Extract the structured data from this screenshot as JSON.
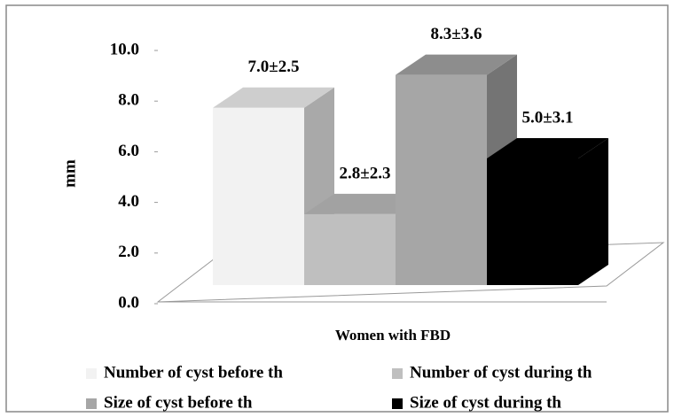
{
  "chart_data": {
    "type": "bar3d",
    "x_label": "Women with FBD",
    "y_label": "mm",
    "categories": [
      "Women with FBD"
    ],
    "series": [
      {
        "name": "Number of cyst before th",
        "color": "#f2f2f2",
        "values": [
          7.0
        ],
        "value_labels": [
          "7.0±2.5"
        ]
      },
      {
        "name": "Number of cyst during th",
        "color": "#bfbfbf",
        "values": [
          2.8
        ],
        "value_labels": [
          "2.8±2.3"
        ]
      },
      {
        "name": "Size of cyst before th",
        "color": "#a6a6a6",
        "values": [
          8.3
        ],
        "value_labels": [
          "8.3±3.6"
        ]
      },
      {
        "name": "Size of cyst during th",
        "color": "#000000",
        "values": [
          5.0
        ],
        "value_labels": [
          "5.0±3.1"
        ]
      }
    ],
    "ylim": [
      0,
      10
    ],
    "yticks": [
      {
        "value": 0,
        "label": "0.0"
      },
      {
        "value": 2,
        "label": "2.0"
      },
      {
        "value": 4,
        "label": "4.0"
      },
      {
        "value": 6,
        "label": "6.0"
      },
      {
        "value": 8,
        "label": "8.0"
      },
      {
        "value": 10,
        "label": "10.0"
      }
    ],
    "legend": "bottom"
  }
}
